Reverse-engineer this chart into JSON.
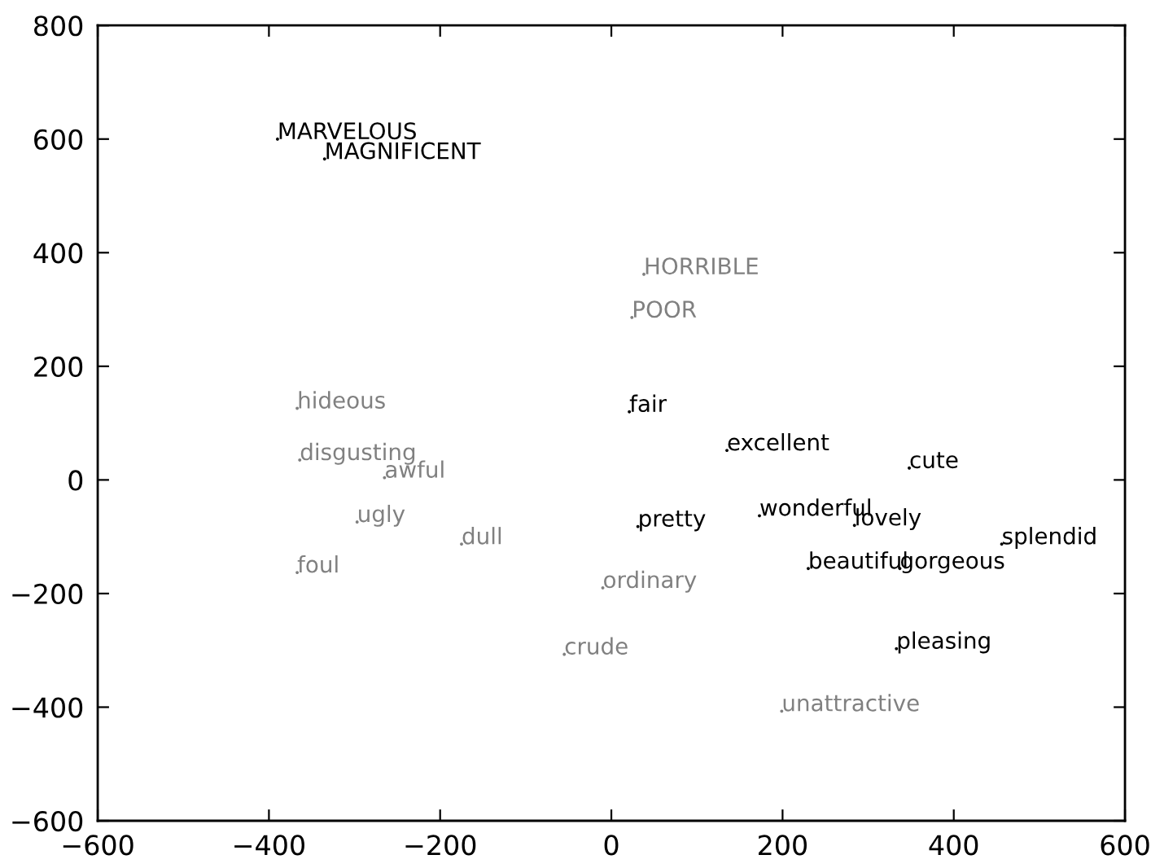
{
  "chart_data": {
    "type": "scatter",
    "marker": "circle",
    "series": [
      {
        "color": "#000000",
        "x": [
          -390,
          -335,
          21,
          135,
          348,
          31,
          173,
          284,
          456,
          230,
          337,
          333
        ],
        "values": [
          600,
          565,
          120,
          52,
          21,
          -82,
          -63,
          -80,
          -113,
          -156,
          -156,
          -297
        ],
        "value_labels": [
          "MARVELOUS",
          "MAGNIFICENT",
          "fair",
          "excellent",
          "cute",
          "pretty",
          "wonderful",
          "lovely",
          "splendid",
          "beautiful",
          "gorgeous",
          "pleasing"
        ]
      },
      {
        "color": "#808080",
        "x": [
          38,
          24,
          -367,
          -364,
          -265,
          -297,
          -175,
          -367,
          -10,
          -55,
          199
        ],
        "values": [
          362,
          286,
          126,
          35,
          4,
          -74,
          -113,
          -163,
          -190,
          -307,
          -407
        ],
        "value_labels": [
          "HORRIBLE",
          "POOR",
          "hideous",
          "disgusting",
          "awful",
          "ugly",
          "dull",
          "foul",
          "ordinary",
          "crude",
          "unattractive"
        ]
      }
    ],
    "xlim": [
      -600,
      600
    ],
    "ylim": [
      -600,
      800
    ],
    "xticks": [
      {
        "value": -600,
        "label": "−600"
      },
      {
        "value": -400,
        "label": "−400"
      },
      {
        "value": -200,
        "label": "−200"
      },
      0,
      200,
      400,
      600
    ],
    "yticks": [
      {
        "value": -600,
        "label": "−600"
      },
      {
        "value": -400,
        "label": "−400"
      },
      {
        "value": -200,
        "label": "−200"
      },
      0,
      200,
      400,
      600,
      800
    ]
  }
}
